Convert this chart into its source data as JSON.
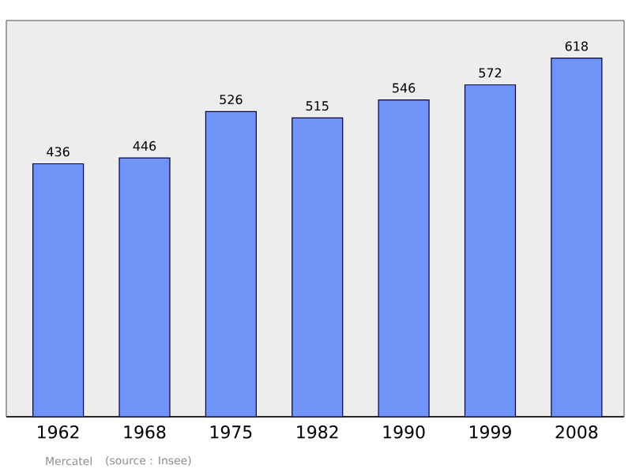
{
  "chart_data": {
    "type": "bar",
    "categories": [
      "1962",
      "1968",
      "1975",
      "1982",
      "1990",
      "1999",
      "2008"
    ],
    "values": [
      436,
      446,
      526,
      515,
      546,
      572,
      618
    ],
    "color": "#7094f8",
    "data_labels": true,
    "annotations": [
      "Mercatel",
      "(source : Insee)"
    ]
  }
}
